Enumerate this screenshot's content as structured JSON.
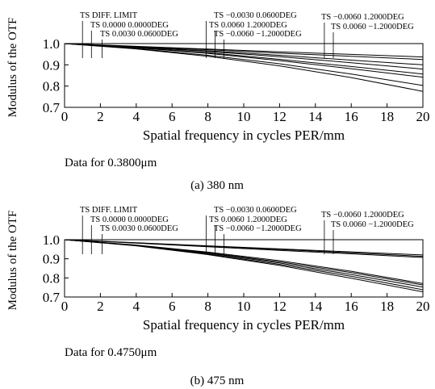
{
  "chart_data": [
    {
      "type": "line",
      "caption": "(a) 380 nm",
      "data_note": "Data for 0.3800μm",
      "xlabel": "Spatial frequency in cycles PER/mm",
      "ylabel": "Modulus of the OTF",
      "xlim": [
        0,
        20
      ],
      "ylim": [
        0.7,
        1.0
      ],
      "xticks": [
        "0",
        "2",
        "4",
        "6",
        "8",
        "10",
        "12",
        "14",
        "16",
        "18",
        "20"
      ],
      "yticks": [
        "1.0",
        "0.9",
        "0.8",
        "0.7"
      ],
      "grid": false,
      "annotations": [
        {
          "text": "TS DIFF. LIMIT",
          "target_x": 1.0
        },
        {
          "text": "TS 0.0000   0.0000DEG",
          "target_x": 1.5
        },
        {
          "text": "TS 0.0030   0.0600DEG",
          "target_x": 2.1
        },
        {
          "text": "TS −0.0030   0.0600DEG",
          "target_x": 7.9
        },
        {
          "text": "TS 0.0060   1.2000DEG",
          "target_x": 8.4
        },
        {
          "text": "TS −0.0060   −1.2000DEG",
          "target_x": 8.9
        },
        {
          "text": "TS −0.0060   1.2000DEG",
          "target_x": 14.5
        },
        {
          "text": "TS 0.0060   −1.2000DEG",
          "target_x": 15.0
        }
      ],
      "series": [
        {
          "name": "TS DIFF. LIMIT",
          "x": [
            0,
            4,
            8,
            12,
            16,
            20
          ],
          "y": [
            1.0,
            0.987,
            0.974,
            0.961,
            0.949,
            0.937
          ]
        },
        {
          "name": "TS 0.0000   0.0000DEG",
          "x": [
            0,
            4,
            8,
            12,
            16,
            20
          ],
          "y": [
            1.0,
            0.986,
            0.971,
            0.955,
            0.94,
            0.925
          ]
        },
        {
          "name": "TS 0.0030   0.0600DEG",
          "x": [
            0,
            4,
            8,
            12,
            16,
            20
          ],
          "y": [
            1.0,
            0.984,
            0.966,
            0.945,
            0.922,
            0.9
          ]
        },
        {
          "name": "TS −0.0030   0.0600DEG",
          "x": [
            0,
            4,
            8,
            12,
            16,
            20
          ],
          "y": [
            1.0,
            0.983,
            0.963,
            0.938,
            0.91,
            0.88
          ]
        },
        {
          "name": "TS 0.0060   1.2000DEG",
          "x": [
            0,
            4,
            8,
            12,
            16,
            20
          ],
          "y": [
            1.0,
            0.981,
            0.957,
            0.926,
            0.892,
            0.857
          ]
        },
        {
          "name": "TS −0.0060   −1.2000DEG",
          "x": [
            0,
            4,
            8,
            12,
            16,
            20
          ],
          "y": [
            1.0,
            0.98,
            0.954,
            0.92,
            0.882,
            0.842
          ]
        },
        {
          "name": "TS −0.0060   1.2000DEG",
          "x": [
            0,
            4,
            8,
            12,
            16,
            20
          ],
          "y": [
            1.0,
            0.977,
            0.945,
            0.905,
            0.857,
            0.803
          ]
        },
        {
          "name": "TS 0.0060   −1.2000DEG",
          "x": [
            0,
            4,
            8,
            12,
            16,
            20
          ],
          "y": [
            1.0,
            0.975,
            0.94,
            0.895,
            0.84,
            0.775
          ]
        }
      ]
    },
    {
      "type": "line",
      "caption": "(b) 475 nm",
      "data_note": "Data for 0.4750μm",
      "xlabel": "Spatial frequency in cycles PER/mm",
      "ylabel": "Modulus of the OTF",
      "xlim": [
        0,
        20
      ],
      "ylim": [
        0.7,
        1.0
      ],
      "xticks": [
        "0",
        "2",
        "4",
        "6",
        "8",
        "10",
        "12",
        "14",
        "16",
        "18",
        "20"
      ],
      "yticks": [
        "1.0",
        "0.9",
        "0.8",
        "0.7"
      ],
      "grid": false,
      "annotations": [
        {
          "text": "TS DIFF. LIMIT",
          "target_x": 1.0
        },
        {
          "text": "TS 0.0000   0.0000DEG",
          "target_x": 1.5
        },
        {
          "text": "TS 0.0030   0.0600DEG",
          "target_x": 2.1
        },
        {
          "text": "TS −0.0030   0.0600DEG",
          "target_x": 7.9
        },
        {
          "text": "TS 0.0060   1.2000DEG",
          "target_x": 8.4
        },
        {
          "text": "TS −0.0060   −1.2000DEG",
          "target_x": 8.9
        },
        {
          "text": "TS −0.0060   1.2000DEG",
          "target_x": 14.5
        },
        {
          "text": "TS 0.0060   −1.2000DEG",
          "target_x": 15.0
        }
      ],
      "series": [
        {
          "name": "TS DIFF. LIMIT",
          "x": [
            0,
            4,
            8,
            12,
            16,
            20
          ],
          "y": [
            1.0,
            0.984,
            0.968,
            0.952,
            0.936,
            0.92
          ]
        },
        {
          "name": "TS 0.0000   0.0000DEG",
          "x": [
            0,
            4,
            8,
            12,
            16,
            20
          ],
          "y": [
            1.0,
            0.983,
            0.966,
            0.949,
            0.931,
            0.913
          ]
        },
        {
          "name": "TS 0.0030   0.0600DEG",
          "x": [
            0,
            4,
            8,
            12,
            16,
            20
          ],
          "y": [
            1.0,
            0.982,
            0.963,
            0.944,
            0.926,
            0.907
          ]
        },
        {
          "name": "TS −0.0030   0.0600DEG",
          "x": [
            0,
            4,
            8,
            12,
            16,
            20
          ],
          "y": [
            1.0,
            0.972,
            0.935,
            0.89,
            0.835,
            0.77
          ]
        },
        {
          "name": "TS 0.0060   1.2000DEG",
          "x": [
            0,
            4,
            8,
            12,
            16,
            20
          ],
          "y": [
            1.0,
            0.971,
            0.932,
            0.884,
            0.828,
            0.763
          ]
        },
        {
          "name": "TS −0.0060   −1.2000DEG",
          "x": [
            0,
            4,
            8,
            12,
            16,
            20
          ],
          "y": [
            1.0,
            0.97,
            0.929,
            0.878,
            0.818,
            0.752
          ]
        },
        {
          "name": "TS −0.0060   1.2000DEG",
          "x": [
            0,
            4,
            8,
            12,
            16,
            20
          ],
          "y": [
            1.0,
            0.969,
            0.925,
            0.871,
            0.808,
            0.738
          ]
        },
        {
          "name": "TS 0.0060   −1.2000DEG",
          "x": [
            0,
            4,
            8,
            12,
            16,
            20
          ],
          "y": [
            1.0,
            0.968,
            0.922,
            0.865,
            0.798,
            0.727
          ]
        }
      ]
    }
  ]
}
